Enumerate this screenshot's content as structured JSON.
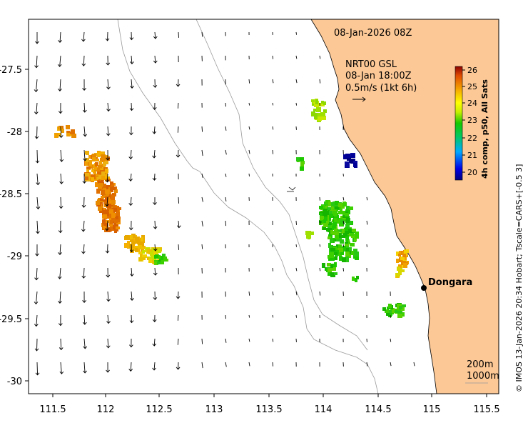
{
  "map": {
    "timestamp": "08-Jan-2026 08Z",
    "current_label_line1": "NRT00 GSL",
    "current_label_line2": "08-Jan 18:00Z",
    "current_label_line3": "0.5m/s (1kt 6h)",
    "place_label": "Dongara",
    "depth_label_1": "200m",
    "depth_label_2": "1000m",
    "credit": "© IMOS 13-Jan-2026 20:34 Hobart; Tscale=CARS+[-0.5 3]",
    "colorbar_title": "4h comp, p50, All Sats",
    "colorbar_ticks": [
      "26",
      "25",
      "24",
      "23",
      "22",
      "21",
      "20"
    ],
    "x_ticks": [
      "111.5",
      "112",
      "112.5",
      "113",
      "113.5",
      "114",
      "114.5",
      "115",
      "115.5"
    ],
    "y_ticks": [
      "-27.5",
      "-28",
      "-28.5",
      "-29",
      "-29.5",
      "-30"
    ],
    "colors": {
      "land": "#fcc896",
      "ocean": "#ffffff",
      "contour": "#9a9a9a"
    }
  }
}
